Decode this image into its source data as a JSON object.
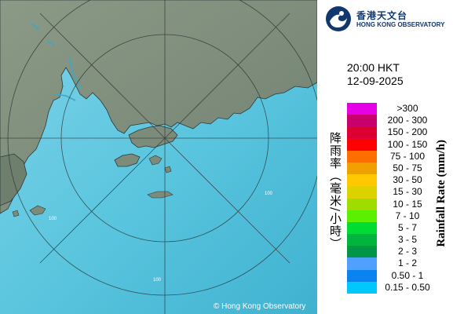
{
  "map": {
    "copyright": "© Hong Kong Observatory",
    "range_labels": [
      "100",
      "100",
      "100"
    ]
  },
  "logo": {
    "name_zh": "香港天文台",
    "name_en": "HONG KONG OBSERVATORY",
    "color": "#10386e"
  },
  "timestamp": {
    "time": "20:00 HKT",
    "date": "12-09-2025"
  },
  "legend": {
    "title_zh": "降雨率（毫米/小時）",
    "title_en": "Rainfall Rate (mm/h)",
    "items": [
      {
        "label": ">300",
        "color": "#e600e6"
      },
      {
        "label": "200 - 300",
        "color": "#c8006e"
      },
      {
        "label": "150 - 200",
        "color": "#dc0032"
      },
      {
        "label": "100 - 150",
        "color": "#ff0000"
      },
      {
        "label": "75 - 100",
        "color": "#ff6e00"
      },
      {
        "label": "50 - 75",
        "color": "#f0a000"
      },
      {
        "label": "30 - 50",
        "color": "#ffc800"
      },
      {
        "label": "15 - 30",
        "color": "#dcd200"
      },
      {
        "label": "10 - 15",
        "color": "#a0dc00"
      },
      {
        "label": "7 - 10",
        "color": "#5af000"
      },
      {
        "label": "5 - 7",
        "color": "#00dc32"
      },
      {
        "label": "3 - 5",
        "color": "#00b43c"
      },
      {
        "label": "2 - 3",
        "color": "#009646"
      },
      {
        "label": "1 - 2",
        "color": "#50a0ff"
      },
      {
        "label": "0.50 - 1",
        "color": "#0a82f0"
      },
      {
        "label": "0.15 - 0.50",
        "color": "#00c8ff"
      }
    ]
  }
}
